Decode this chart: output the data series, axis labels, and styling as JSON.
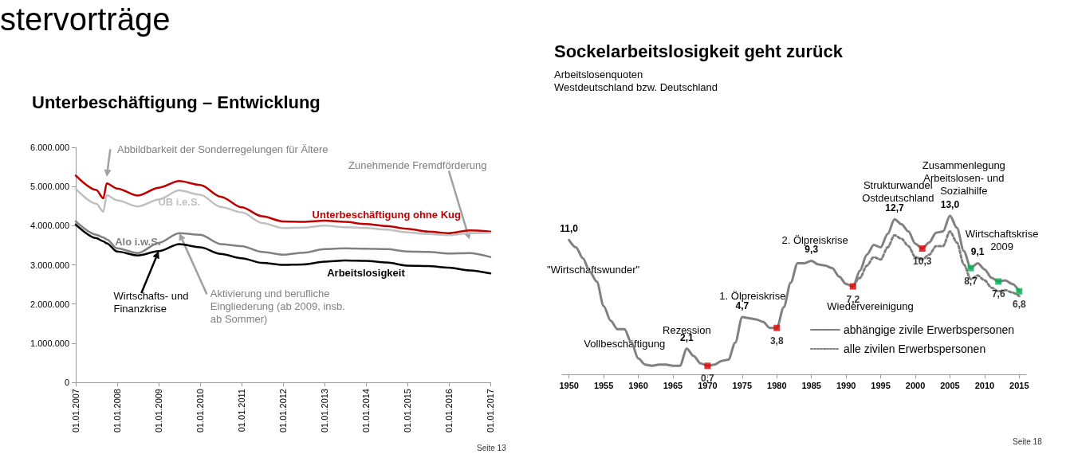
{
  "chart_data": [
    {
      "type": "line",
      "title": "Unterbeschäftigung – Entwicklung",
      "x": [
        "2007-01",
        "2007-07",
        "2007-09",
        "2007-10",
        "2008-01",
        "2008-07",
        "2009-01",
        "2009-07",
        "2010-01",
        "2010-07",
        "2011-01",
        "2011-07",
        "2012-01",
        "2012-07",
        "2013-01",
        "2013-07",
        "2014-01",
        "2014-07",
        "2015-01",
        "2015-07",
        "2016-01",
        "2016-07",
        "2017-01"
      ],
      "series": [
        {
          "name": "Unterbeschäftigung ohne Kug",
          "color": "#c00000",
          "values": [
            5280000,
            4910000,
            4700000,
            5080000,
            4950000,
            4770000,
            4970000,
            5140000,
            5040000,
            4740000,
            4470000,
            4240000,
            4110000,
            4100000,
            4130000,
            4100000,
            4040000,
            3990000,
            3920000,
            3850000,
            3810000,
            3880000,
            3850000
          ]
        },
        {
          "name": "UB i.e.S.",
          "color": "#c0c0c0",
          "values": [
            4940000,
            4560000,
            4360000,
            4780000,
            4650000,
            4490000,
            4670000,
            4900000,
            4790000,
            4480000,
            4340000,
            4070000,
            3940000,
            3950000,
            4000000,
            3960000,
            3940000,
            3900000,
            3830000,
            3790000,
            3760000,
            3810000,
            3820000
          ]
        },
        {
          "name": "Alo i.w.S.",
          "color": "#808080",
          "values": [
            4110000,
            3770000,
            3700000,
            3650000,
            3420000,
            3300000,
            3560000,
            3810000,
            3770000,
            3530000,
            3480000,
            3330000,
            3260000,
            3310000,
            3400000,
            3420000,
            3410000,
            3400000,
            3340000,
            3330000,
            3290000,
            3300000,
            3200000
          ]
        },
        {
          "name": "Arbeitslosigkeit",
          "color": "#000000",
          "values": [
            4030000,
            3680000,
            3600000,
            3550000,
            3340000,
            3240000,
            3350000,
            3530000,
            3450000,
            3280000,
            3170000,
            3050000,
            3000000,
            3010000,
            3080000,
            3110000,
            3100000,
            3060000,
            2980000,
            2970000,
            2930000,
            2860000,
            2780000
          ]
        }
      ],
      "xlim": [
        "2007-01-01",
        "2017-01-01"
      ],
      "xticks": [
        {
          "value": "2007-01-01",
          "label": "01.01.2007"
        },
        {
          "value": "2008-01-01",
          "label": "01.01.2008"
        },
        {
          "value": "2009-01-01",
          "label": "01.01.2009"
        },
        {
          "value": "2010-01-01",
          "label": "01.01.2010"
        },
        {
          "value": "2011-01-01",
          "label": "01.01.2011"
        },
        {
          "value": "2012-01-01",
          "label": "01.01.2012"
        },
        {
          "value": "2013-01-01",
          "label": "01.01.2013"
        },
        {
          "value": "2014-01-01",
          "label": "01.01.2014"
        },
        {
          "value": "2015-01-01",
          "label": "01.01.2015"
        },
        {
          "value": "2016-01-01",
          "label": "01.01.2016"
        },
        {
          "value": "2017-01-01",
          "label": "01.01.2017"
        }
      ],
      "ylim": [
        0,
        6000000
      ],
      "yticks": [
        0,
        {
          "value": 1000000,
          "label": "1.000.000"
        },
        {
          "value": 2000000,
          "label": "2.000.000"
        },
        {
          "value": 3000000,
          "label": "3.000.000"
        },
        {
          "value": 4000000,
          "label": "4.000.000"
        },
        {
          "value": 5000000,
          "label": "5.000.000"
        },
        {
          "value": 6000000,
          "label": "6.000.000"
        }
      ],
      "annotations": [
        "Abbildbarkeit der Sonderregelungen für Ältere",
        "Zunehmende Fremdförderung",
        {
          "text": "Wirtschafts- und\nFinanzkrise",
          "x": "2009-01",
          "y": 3350000
        },
        {
          "text": "Aktivierung und berufliche\nEingliederung (ab 2009, insb.\nab Sommer)",
          "x": "2009-07",
          "y": 3810000
        },
        "stervorträge",
        "Seite 13"
      ]
    },
    {
      "type": "line",
      "title": "Sockelarbeitslosigkeit geht zurück",
      "subtitle": "Arbeitslosenquoten\nWestdeutschland bzw. Deutschland",
      "x": [
        1950,
        1951,
        1952,
        1953,
        1954,
        1955,
        1956,
        1957,
        1958,
        1959,
        1960,
        1961,
        1962,
        1963,
        1964,
        1965,
        1966,
        1967,
        1968,
        1969,
        1970,
        1971,
        1972,
        1973,
        1974,
        1975,
        1976,
        1977,
        1978,
        1979,
        1980,
        1981,
        1982,
        1983,
        1984,
        1985,
        1986,
        1987,
        1988,
        1989,
        1990,
        1991,
        1992,
        1993,
        1994,
        1995,
        1996,
        1997,
        1998,
        1999,
        2000,
        2001,
        2002,
        2003,
        2004,
        2005,
        2006,
        2007,
        2008,
        2009,
        2010,
        2011,
        2012,
        2013,
        2014,
        2015
      ],
      "series": [
        {
          "name": "abhängige zivile Erwerbspersonen",
          "color": "#808080",
          "line_style": "solid",
          "values": [
            11.0,
            10.4,
            9.5,
            8.4,
            7.6,
            5.6,
            4.4,
            3.7,
            3.7,
            2.6,
            1.3,
            0.8,
            0.7,
            0.8,
            0.8,
            0.7,
            0.7,
            2.1,
            1.5,
            0.9,
            0.7,
            0.8,
            1.1,
            1.2,
            2.6,
            4.7,
            4.6,
            4.5,
            4.3,
            3.8,
            3.8,
            5.5,
            7.5,
            9.1,
            9.1,
            9.3,
            9.0,
            8.9,
            8.7,
            8.0,
            7.4,
            7.2,
            8.5,
            9.8,
            10.6,
            10.4,
            11.5,
            12.7,
            12.3,
            11.7,
            10.7,
            10.3,
            10.8,
            11.6,
            11.7,
            13.0,
            12.0,
            10.1,
            8.7,
            9.1,
            8.6,
            7.9,
            7.6,
            7.7,
            7.4,
            6.8
          ],
          "value_labels": [
            "11,0",
            null,
            null,
            null,
            null,
            null,
            null,
            null,
            null,
            null,
            null,
            null,
            null,
            null,
            null,
            null,
            null,
            "2,1",
            null,
            null,
            null,
            null,
            null,
            null,
            null,
            "4,7",
            null,
            null,
            null,
            null,
            null,
            null,
            null,
            null,
            null,
            "9,3",
            null,
            null,
            null,
            null,
            null,
            null,
            null,
            null,
            null,
            null,
            null,
            "12,7",
            null,
            null,
            null,
            null,
            null,
            null,
            null,
            "13,0",
            null,
            null,
            null,
            "9,1",
            null,
            null,
            null,
            null,
            null,
            null
          ]
        },
        {
          "name": "alle zivilen Erwerbspersonen",
          "color": "#808080",
          "line_style": "dotted",
          "x": [
            1991,
            1992,
            1993,
            1994,
            1995,
            1996,
            1997,
            1998,
            1999,
            2000,
            2001,
            2002,
            2003,
            2004,
            2005,
            2006,
            2007,
            2008,
            2009,
            2010,
            2011,
            2012,
            2013,
            2014,
            2015
          ],
          "values": [
            7.2,
            7.9,
            8.9,
            9.6,
            9.4,
            10.4,
            11.4,
            11.1,
            10.5,
            9.6,
            9.4,
            9.8,
            10.5,
            10.5,
            11.7,
            10.8,
            9.0,
            7.8,
            8.1,
            7.7,
            7.1,
            6.8,
            6.9,
            6.7,
            6.4
          ]
        },
        {
          "type": "scatter",
          "color": "#e00000",
          "marker": "square",
          "x": [
            1970,
            1980,
            1991,
            2001
          ],
          "values": [
            0.7,
            3.8,
            7.2,
            10.3
          ],
          "value_labels": [
            "0,7",
            "3,8",
            "7,2",
            "10,3"
          ]
        },
        {
          "type": "scatter",
          "color": "#00b050",
          "marker": "square",
          "x": [
            2008,
            2012,
            2015
          ],
          "values": [
            8.7,
            7.6,
            6.8
          ],
          "value_labels": [
            "8,7",
            "7,6",
            "6,8"
          ]
        }
      ],
      "xlim": [
        1949,
        2016
      ],
      "xticks": [
        1950,
        1955,
        1960,
        1965,
        1970,
        1975,
        1980,
        1985,
        1990,
        1995,
        2000,
        2005,
        2010,
        2015
      ],
      "tick_labels": "x",
      "legend": "bottom right",
      "annotations": [
        "\"Wirtschaftswunder\"",
        "Vollbeschäftigung",
        "Rezession",
        "1. Ölpreiskrise",
        "2. Ölpreiskrise",
        "Wiedervereinigung",
        "Strukturwandel\nOstdeutschland",
        "Zusammenlegung\nArbeitslosen- und\nSozialhilfe",
        "Wirtschaftskrise\n2009",
        "Seite 18"
      ]
    }
  ]
}
